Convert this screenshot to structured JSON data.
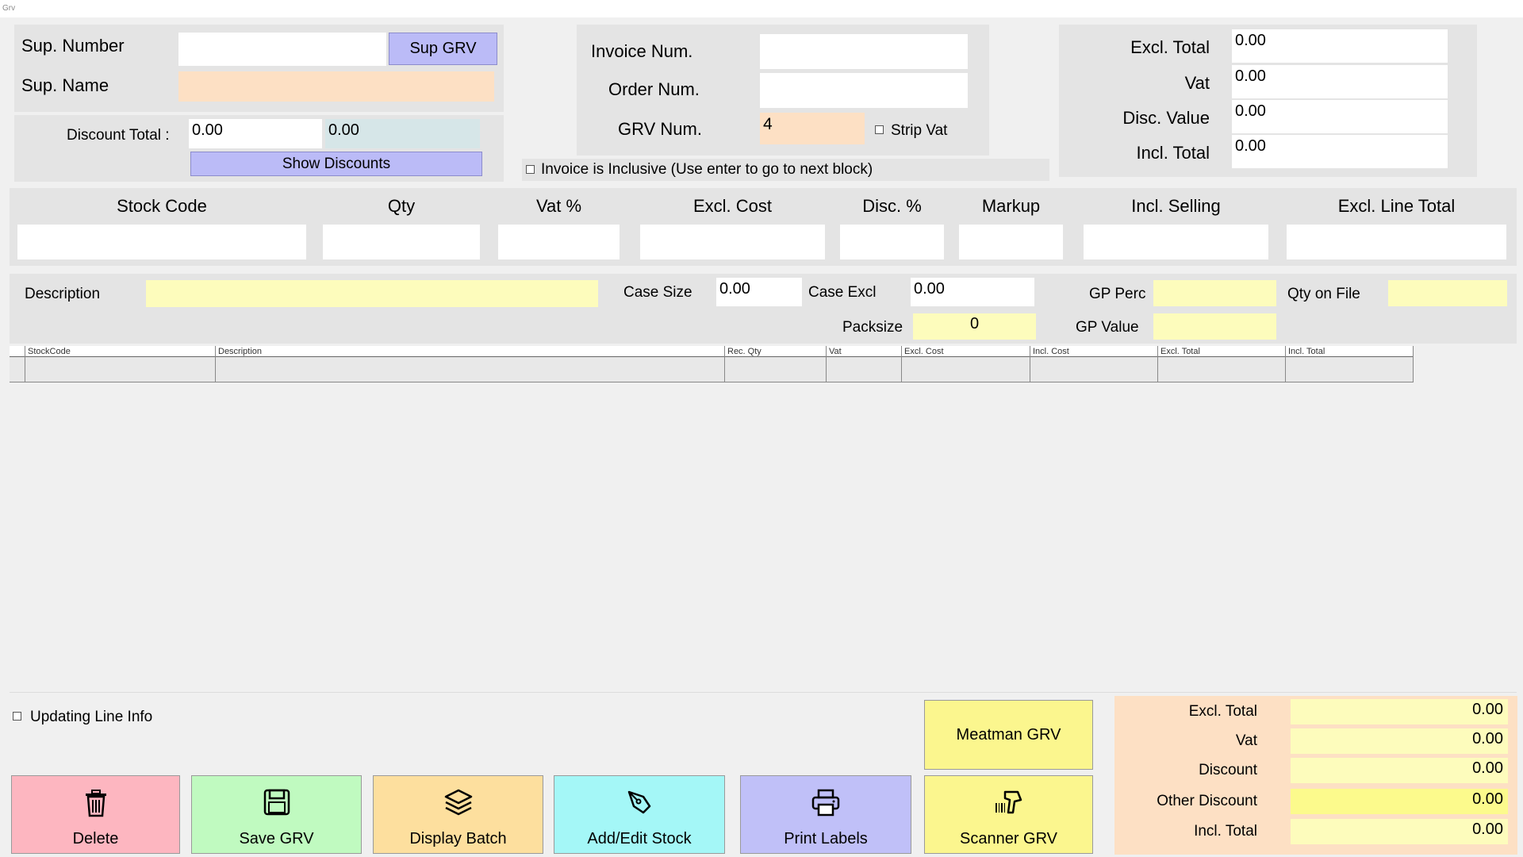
{
  "window": {
    "title": "Grv"
  },
  "supplier": {
    "number_label": "Sup. Number",
    "number_value": "",
    "sup_grv_button": "Sup GRV",
    "name_label": "Sup. Name",
    "name_value": ""
  },
  "discount": {
    "label": "Discount Total :",
    "value1": "0.00",
    "value2": "0.00",
    "show_button": "Show Discounts"
  },
  "invoice": {
    "invoice_num_label": "Invoice Num.",
    "invoice_num_value": "",
    "order_num_label": "Order Num.",
    "order_num_value": "",
    "grv_num_label": "GRV Num.",
    "grv_num_value": "4",
    "strip_vat_label": "Strip Vat",
    "inclusive_label": "Invoice is Inclusive (Use enter to go to next block)"
  },
  "totals_top": {
    "excl_label": "Excl. Total",
    "excl_value": "0.00",
    "vat_label": "Vat",
    "vat_value": "0.00",
    "disc_label": "Disc. Value",
    "disc_value": "0.00",
    "incl_label": "Incl. Total",
    "incl_value": "0.00"
  },
  "line_entry": {
    "stock_code": "Stock Code",
    "qty": "Qty",
    "vat_pct": "Vat %",
    "excl_cost": "Excl. Cost",
    "disc_pct": "Disc. %",
    "markup": "Markup",
    "incl_selling": "Incl. Selling",
    "excl_line_total": "Excl. Line Total"
  },
  "details": {
    "description_label": "Description",
    "description_value": "",
    "case_size_label": "Case Size",
    "case_size_value": "0.00",
    "case_excl_label": "Case Excl",
    "case_excl_value": "0.00",
    "packsize_label": "Packsize",
    "packsize_value": "0",
    "gp_perc_label": "GP Perc",
    "gp_perc_value": "",
    "gp_value_label": "GP Value",
    "gp_value_value": "",
    "qty_on_file_label": "Qty on File",
    "qty_on_file_value": ""
  },
  "grid": {
    "columns": [
      "StockCode",
      "Description",
      "Rec. Qty",
      "Vat",
      "Excl. Cost",
      "Incl. Cost",
      "Excl. Total",
      "Incl. Total"
    ]
  },
  "updating_line_info": "Updating Line Info",
  "buttons": {
    "delete": "Delete",
    "save": "Save GRV",
    "display_batch": "Display Batch",
    "add_edit": "Add/Edit Stock",
    "print_labels": "Print Labels",
    "meatman": "Meatman GRV",
    "scanner": "Scanner GRV"
  },
  "summary": {
    "excl_label": "Excl. Total",
    "excl_value": "0.00",
    "vat_label": "Vat",
    "vat_value": "0.00",
    "discount_label": "Discount",
    "discount_value": "0.00",
    "other_label": "Other Discount",
    "other_value": "0.00",
    "incl_label": "Incl. Total",
    "incl_value": "0.00"
  },
  "colors": {
    "delete": "#fdb6c0",
    "save": "#c0fac0",
    "display_batch": "#fddf9e",
    "add_edit": "#a4f7f7",
    "print_labels": "#c0c0f8",
    "meatman": "#fbf68e",
    "scanner": "#fbf68e",
    "summary_bg": "#fde0c4"
  }
}
